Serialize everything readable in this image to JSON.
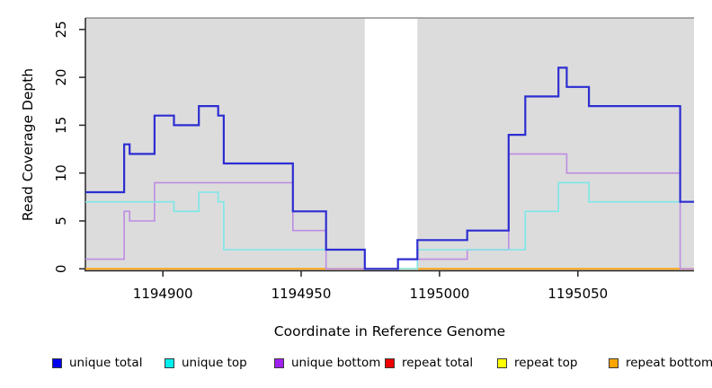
{
  "figure": {
    "xlabel": "Coordinate in Reference Genome",
    "ylabel": "Read Coverage Depth"
  },
  "chart_data": {
    "type": "line",
    "subtype": "step",
    "title": "",
    "xlabel": "Coordinate in Reference Genome",
    "ylabel": "Read Coverage Depth",
    "xlim": [
      1194872,
      1195092
    ],
    "ylim": [
      0,
      26.2
    ],
    "x_ticks": [
      1194900,
      1194950,
      1195000,
      1195050
    ],
    "y_ticks": [
      0,
      5,
      10,
      15,
      20,
      25
    ],
    "grid": false,
    "legend_position": "bottom",
    "shaded_regions": [
      {
        "x0": 1194872,
        "x1": 1194973,
        "color": "#DCDCDC"
      },
      {
        "x0": 1194992,
        "x1": 1195092,
        "color": "#DCDCDC"
      }
    ],
    "series": [
      {
        "name": "repeat total",
        "color": "#E04040",
        "width": 1.4,
        "points": [
          [
            1194872,
            0
          ]
        ]
      },
      {
        "name": "repeat top",
        "color": "#E6E600",
        "width": 1.4,
        "points": [
          [
            1194872,
            0
          ]
        ]
      },
      {
        "name": "repeat bottom",
        "color": "#FFA30A",
        "width": 1.8,
        "points": [
          [
            1194872,
            0
          ]
        ]
      },
      {
        "name": "unique bottom",
        "color": "#BE8CE2",
        "width": 1.6,
        "points": [
          [
            1194872,
            1
          ],
          [
            1194886,
            6
          ],
          [
            1194888,
            5
          ],
          [
            1194897,
            9
          ],
          [
            1194947,
            4
          ],
          [
            1194959,
            0
          ],
          [
            1194985,
            1
          ],
          [
            1195010,
            2
          ],
          [
            1195025,
            12
          ],
          [
            1195046,
            10
          ],
          [
            1195087,
            0
          ]
        ]
      },
      {
        "name": "unique top",
        "color": "#7DE7E9",
        "width": 1.6,
        "points": [
          [
            1194872,
            7
          ],
          [
            1194904,
            6
          ],
          [
            1194913,
            8
          ],
          [
            1194920,
            7
          ],
          [
            1194922,
            2
          ],
          [
            1194973,
            0
          ],
          [
            1194992,
            2
          ],
          [
            1195031,
            6
          ],
          [
            1195043,
            9
          ],
          [
            1195054,
            7
          ]
        ]
      },
      {
        "name": "unique total",
        "color": "#2D2DD2",
        "width": 2.2,
        "points": [
          [
            1194872,
            8
          ],
          [
            1194886,
            13
          ],
          [
            1194888,
            12
          ],
          [
            1194897,
            16
          ],
          [
            1194904,
            15
          ],
          [
            1194913,
            17
          ],
          [
            1194920,
            16
          ],
          [
            1194922,
            11
          ],
          [
            1194947,
            6
          ],
          [
            1194959,
            2
          ],
          [
            1194973,
            0
          ],
          [
            1194985,
            1
          ],
          [
            1194992,
            3
          ],
          [
            1195010,
            4
          ],
          [
            1195025,
            14
          ],
          [
            1195031,
            18
          ],
          [
            1195043,
            21
          ],
          [
            1195046,
            19
          ],
          [
            1195054,
            17
          ],
          [
            1195087,
            7
          ]
        ]
      }
    ]
  },
  "legend": {
    "items": [
      {
        "label": "unique total",
        "color": "#0000EE"
      },
      {
        "label": "unique top",
        "color": "#00EEEE"
      },
      {
        "label": "unique bottom",
        "color": "#A020F0"
      },
      {
        "label": "repeat total",
        "color": "#EE0000"
      },
      {
        "label": "repeat top",
        "color": "#FFFF00"
      },
      {
        "label": "repeat bottom",
        "color": "#FFA500"
      }
    ]
  }
}
